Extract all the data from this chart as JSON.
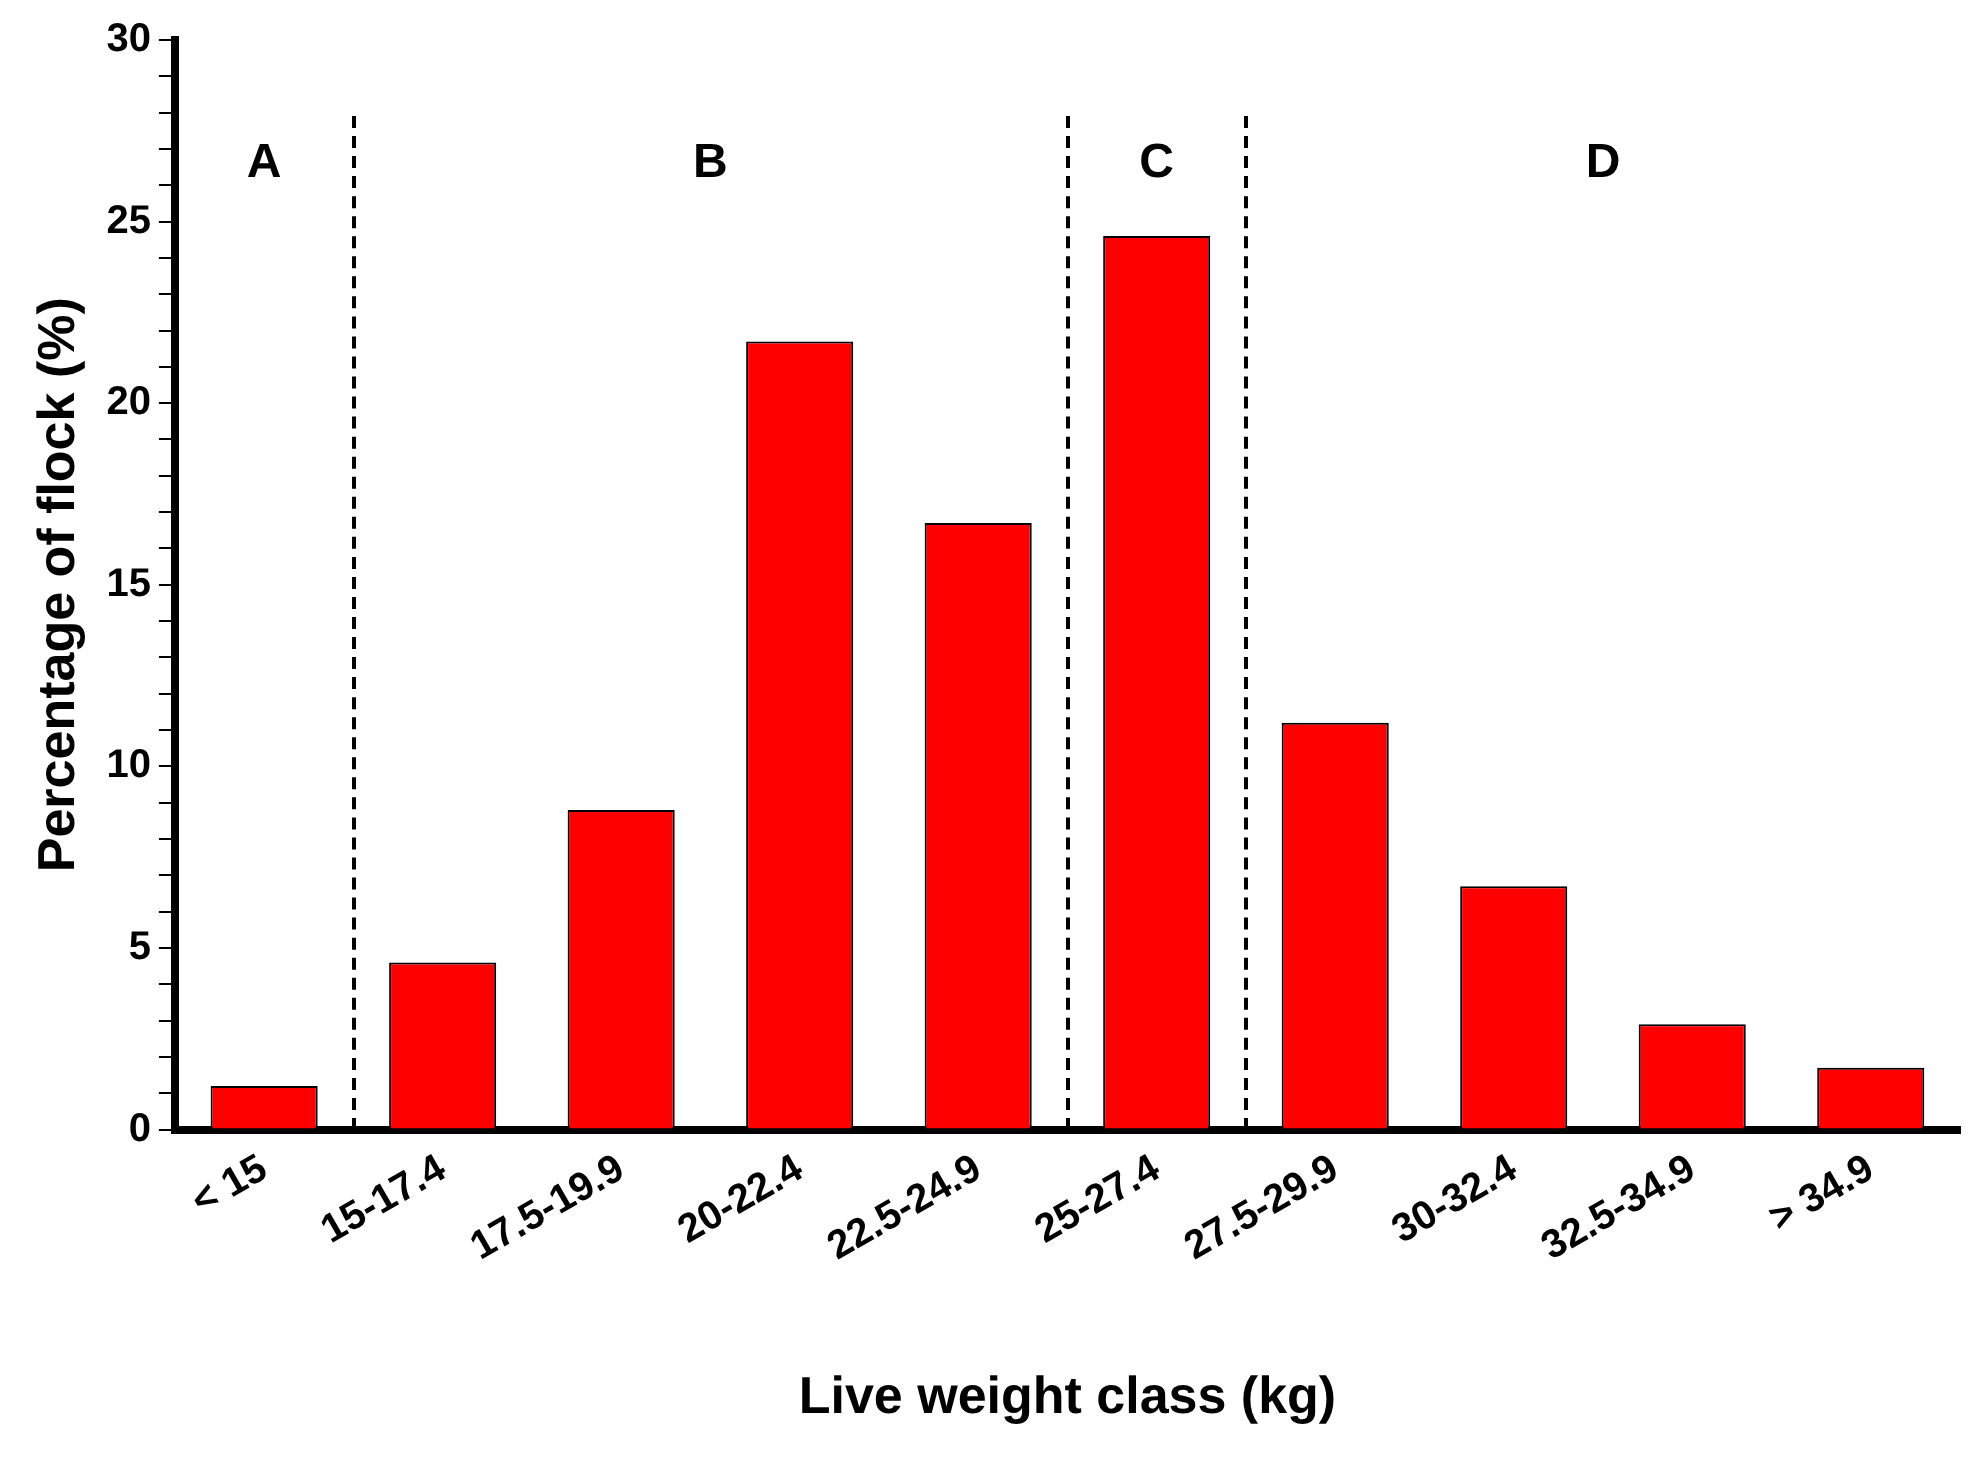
{
  "chart_data": {
    "type": "bar",
    "xlabel": "Live weight class (kg)",
    "ylabel": "Percentage of flock (%)",
    "categories": [
      "< 15",
      "15-17.4",
      "17.5-19.9",
      "20-22.4",
      "22.5-24.9",
      "25-27.4",
      "27.5-29.9",
      "30-32.4",
      "32.5-34.9",
      "> 34.9"
    ],
    "values": [
      1.2,
      4.6,
      8.8,
      21.7,
      16.7,
      24.6,
      11.2,
      6.7,
      2.9,
      1.7
    ],
    "color": "#ff0000",
    "ylim": [
      0,
      30
    ],
    "yticks": [
      0,
      {
        "value": 1,
        "label": null
      },
      {
        "value": 2,
        "label": null
      },
      {
        "value": 3,
        "label": null
      },
      {
        "value": 4,
        "label": null
      },
      5,
      {
        "value": 6,
        "label": null
      },
      {
        "value": 7,
        "label": null
      },
      {
        "value": 8,
        "label": null
      },
      {
        "value": 9,
        "label": null
      },
      10,
      {
        "value": 11,
        "label": null
      },
      {
        "value": 12,
        "label": null
      },
      {
        "value": 13,
        "label": null
      },
      {
        "value": 14,
        "label": null
      },
      15,
      {
        "value": 16,
        "label": null
      },
      {
        "value": 17,
        "label": null
      },
      {
        "value": 18,
        "label": null
      },
      {
        "value": 19,
        "label": null
      },
      20,
      {
        "value": 21,
        "label": null
      },
      {
        "value": 22,
        "label": null
      },
      {
        "value": 23,
        "label": null
      },
      {
        "value": 24,
        "label": null
      },
      25,
      {
        "value": 26,
        "label": null
      },
      {
        "value": 27,
        "label": null
      },
      {
        "value": 28,
        "label": null
      },
      {
        "value": 29,
        "label": null
      },
      30
    ],
    "grid": false,
    "legend": false,
    "annotations": [
      "A",
      "B",
      "C",
      "D"
    ]
  }
}
